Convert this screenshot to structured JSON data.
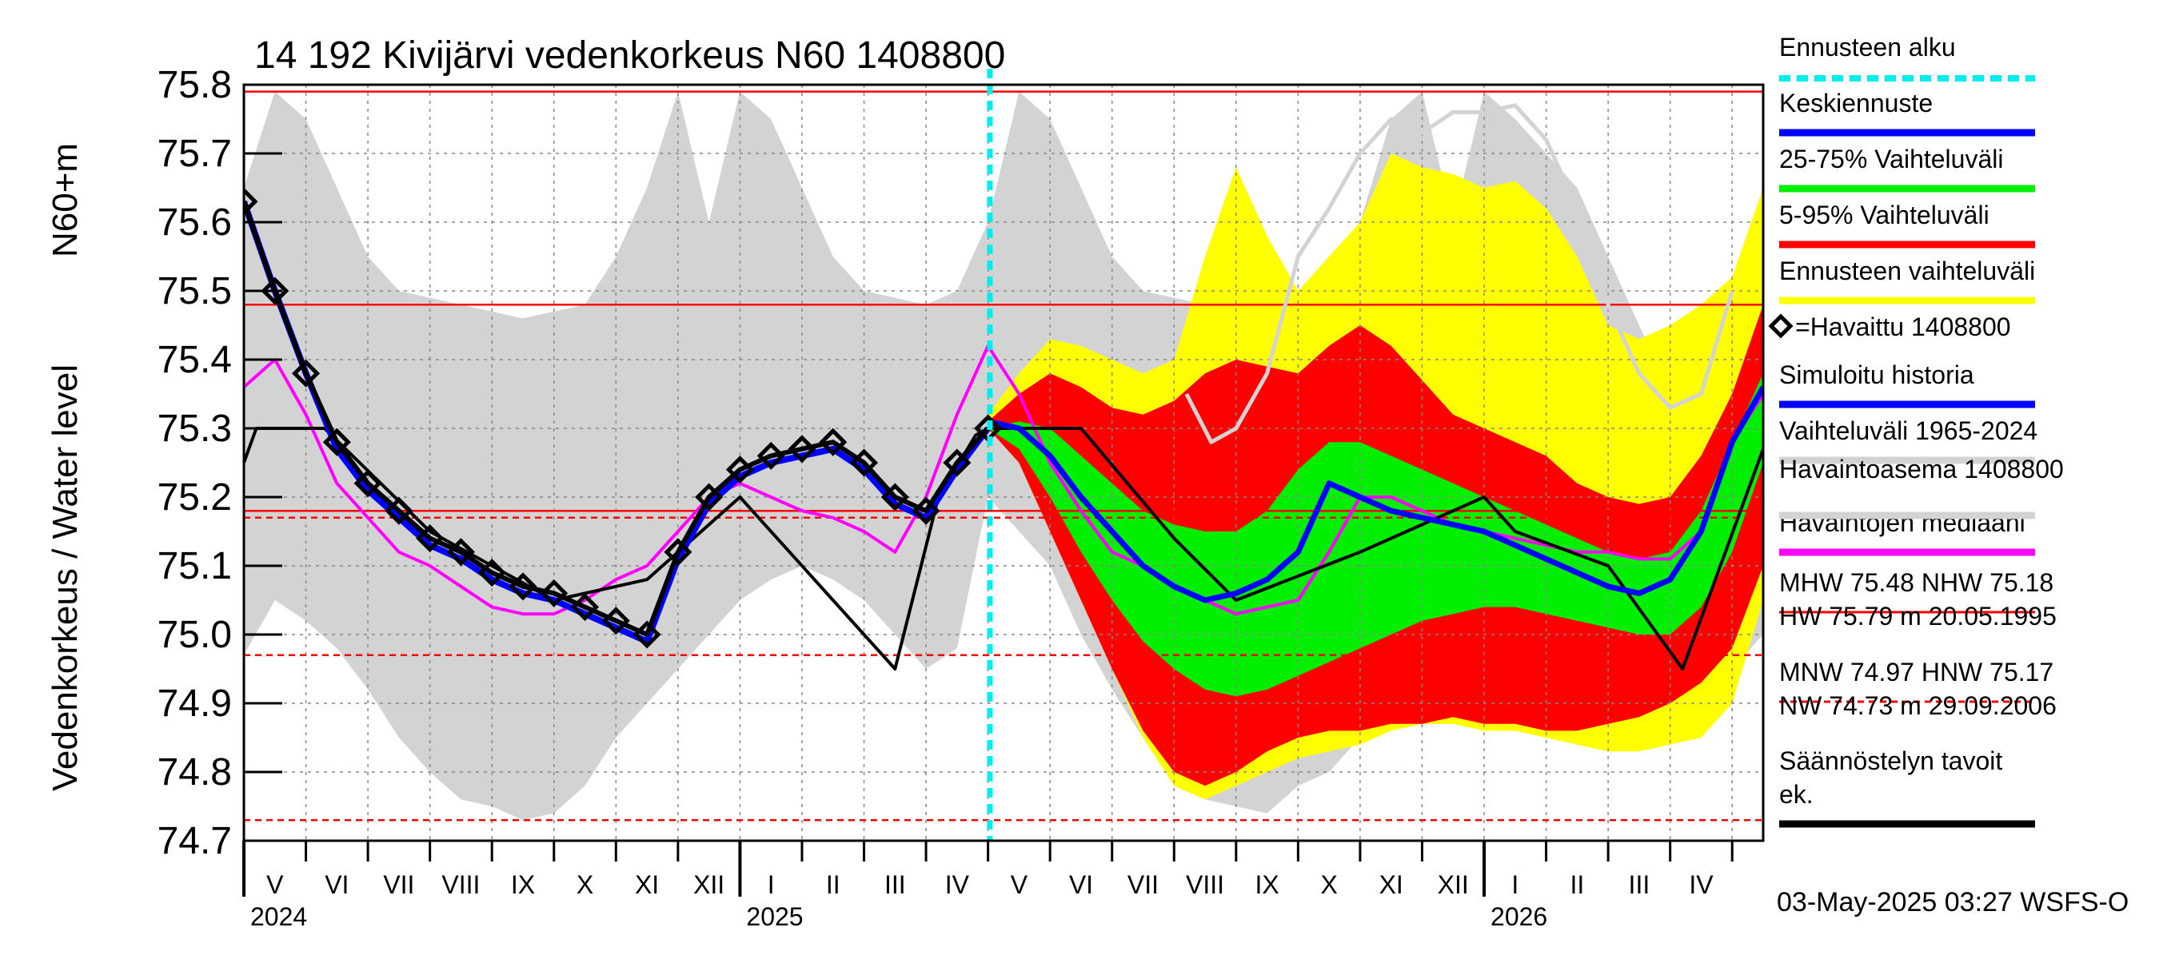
{
  "chart_data": {
    "type": "line",
    "title": "14 192 Kivijärvi vedenkorkeus N60 1408800",
    "ylabel_main": "Vedenkorkeus / Water level",
    "ylabel_unit": "N60+m",
    "ylim": [
      74.7,
      75.8
    ],
    "y_ticks": [
      "75.8",
      "75.7",
      "75.6",
      "75.5",
      "75.4",
      "75.3",
      "75.2",
      "75.1",
      "75.0",
      "74.9",
      "74.8",
      "74.7"
    ],
    "x_range_months": [
      0,
      24.5
    ],
    "x_month_labels": [
      "V",
      "VI",
      "VII",
      "VIII",
      "IX",
      "X",
      "XI",
      "XII",
      "I",
      "II",
      "III",
      "IV",
      "V",
      "VI",
      "VII",
      "VIII",
      "IX",
      "X",
      "XI",
      "XII",
      "I",
      "II",
      "III",
      "IV"
    ],
    "x_year_labels": [
      {
        "label": "2024",
        "month": 0
      },
      {
        "label": "2025",
        "month": 8
      },
      {
        "label": "2026",
        "month": 20
      }
    ],
    "forecast_start_month": 12.03,
    "reference_lines": [
      {
        "name": "HW",
        "value": 75.79,
        "style": "solid"
      },
      {
        "name": "MHW",
        "value": 75.48,
        "style": "solid"
      },
      {
        "name": "NHW",
        "value": 75.18,
        "style": "solid"
      },
      {
        "name": "HNW",
        "value": 75.17,
        "style": "dashed"
      },
      {
        "name": "MNW",
        "value": 74.97,
        "style": "dashed"
      },
      {
        "name": "NW",
        "value": 74.73,
        "style": "dashed"
      }
    ],
    "series": [
      {
        "name": "Vaihteluväli 1965-2024 (upper)",
        "color": "#d3d3d3",
        "x": [
          0,
          0.5,
          1,
          1.5,
          2,
          2.5,
          3,
          3.5,
          4,
          4.5,
          5,
          5.5,
          6,
          6.5,
          7,
          7.5,
          8,
          8.5,
          9,
          9.5,
          10,
          10.5,
          11,
          11.5,
          12,
          12.5,
          13,
          13.5,
          14,
          14.5,
          15,
          15.5,
          16,
          16.5,
          17,
          17.5,
          18,
          18.5,
          19,
          19.5,
          20,
          20.5,
          21,
          21.5,
          22,
          22.5,
          23,
          23.5,
          24,
          24.5
        ],
        "y": [
          75.65,
          75.79,
          75.75,
          75.65,
          75.55,
          75.5,
          75.49,
          75.48,
          75.47,
          75.46,
          75.47,
          75.48,
          75.55,
          75.65,
          75.79,
          75.6,
          75.79,
          75.75,
          75.65,
          75.55,
          75.5,
          75.49,
          75.48,
          75.5,
          75.6,
          75.79,
          75.75,
          75.65,
          75.55,
          75.5,
          75.49,
          75.48,
          75.47,
          75.46,
          75.47,
          75.5,
          75.6,
          75.75,
          75.79,
          75.6,
          75.79,
          75.75,
          75.7,
          75.65,
          75.55,
          75.45,
          75.35,
          75.3,
          75.5,
          75.65
        ]
      },
      {
        "name": "Vaihteluväli 1965-2024 (lower)",
        "color": "#d3d3d3",
        "x": [
          0,
          0.5,
          1,
          1.5,
          2,
          2.5,
          3,
          3.5,
          4,
          4.5,
          5,
          5.5,
          6,
          6.5,
          7,
          7.5,
          8,
          8.5,
          9,
          9.5,
          10,
          10.5,
          11,
          11.5,
          12,
          12.5,
          13,
          13.5,
          14,
          14.5,
          15,
          15.5,
          16,
          16.5,
          17,
          17.5,
          18,
          18.5,
          19,
          19.5,
          20,
          20.5,
          21,
          21.5,
          22,
          22.5,
          23,
          23.5,
          24,
          24.5
        ],
        "y": [
          74.97,
          75.05,
          75.02,
          74.98,
          74.92,
          74.85,
          74.8,
          74.76,
          74.75,
          74.73,
          74.74,
          74.78,
          74.85,
          74.9,
          74.95,
          75.0,
          75.05,
          75.08,
          75.1,
          75.08,
          75.05,
          75.0,
          74.95,
          74.98,
          75.2,
          75.15,
          75.1,
          75.0,
          74.92,
          74.85,
          74.8,
          74.76,
          74.75,
          74.74,
          74.78,
          74.8,
          74.85,
          74.86,
          74.87,
          74.87,
          74.87,
          74.87,
          74.86,
          74.86,
          74.86,
          74.87,
          74.88,
          74.9,
          74.95,
          75.0
        ]
      },
      {
        "name": "Ennusteen vaihteluväli (upper)",
        "color": "#ffff00",
        "x": [
          12,
          12.5,
          13,
          13.5,
          14,
          14.5,
          15,
          15.5,
          16,
          16.5,
          17,
          17.5,
          18,
          18.5,
          19,
          19.5,
          20,
          20.5,
          21,
          21.5,
          22,
          22.5,
          23,
          23.5,
          24,
          24.5
        ],
        "y": [
          75.32,
          75.38,
          75.43,
          75.42,
          75.4,
          75.38,
          75.4,
          75.55,
          75.68,
          75.58,
          75.5,
          75.55,
          75.6,
          75.7,
          75.68,
          75.67,
          75.65,
          75.66,
          75.62,
          75.55,
          75.45,
          75.43,
          75.45,
          75.48,
          75.52,
          75.65
        ]
      },
      {
        "name": "Ennusteen vaihteluväli (lower)",
        "color": "#ffff00",
        "x": [
          12,
          12.5,
          13,
          13.5,
          14,
          14.5,
          15,
          15.5,
          16,
          16.5,
          17,
          17.5,
          18,
          18.5,
          19,
          19.5,
          20,
          20.5,
          21,
          21.5,
          22,
          22.5,
          23,
          23.5,
          24,
          24.5
        ],
        "y": [
          75.3,
          75.25,
          75.15,
          75.05,
          74.95,
          74.85,
          74.78,
          74.76,
          74.78,
          74.8,
          74.82,
          74.83,
          74.84,
          74.86,
          74.87,
          74.87,
          74.86,
          74.86,
          74.85,
          74.84,
          74.83,
          74.83,
          74.84,
          74.85,
          74.9,
          75.05
        ]
      },
      {
        "name": "5-95% Vaihteluväli (upper)",
        "color": "#ff0000",
        "x": [
          12,
          12.5,
          13,
          13.5,
          14,
          14.5,
          15,
          15.5,
          16,
          16.5,
          17,
          17.5,
          18,
          18.5,
          19,
          19.5,
          20,
          20.5,
          21,
          21.5,
          22,
          22.5,
          23,
          23.5,
          24,
          24.5
        ],
        "y": [
          75.31,
          75.35,
          75.38,
          75.36,
          75.33,
          75.32,
          75.34,
          75.38,
          75.4,
          75.39,
          75.38,
          75.42,
          75.45,
          75.42,
          75.37,
          75.32,
          75.3,
          75.28,
          75.26,
          75.22,
          75.2,
          75.19,
          75.2,
          75.26,
          75.35,
          75.48
        ]
      },
      {
        "name": "5-95% Vaihteluväli (lower)",
        "color": "#ff0000",
        "x": [
          12,
          12.5,
          13,
          13.5,
          14,
          14.5,
          15,
          15.5,
          16,
          16.5,
          17,
          17.5,
          18,
          18.5,
          19,
          19.5,
          20,
          20.5,
          21,
          21.5,
          22,
          22.5,
          23,
          23.5,
          24,
          24.5
        ],
        "y": [
          75.3,
          75.25,
          75.15,
          75.05,
          74.95,
          74.86,
          74.8,
          74.78,
          74.8,
          74.83,
          74.85,
          74.86,
          74.86,
          74.87,
          74.87,
          74.88,
          74.87,
          74.87,
          74.86,
          74.86,
          74.87,
          74.88,
          74.9,
          74.93,
          74.98,
          75.1
        ]
      },
      {
        "name": "25-75% Vaihteluväli (upper)",
        "color": "#00ee00",
        "x": [
          12,
          12.5,
          13,
          13.5,
          14,
          14.5,
          15,
          15.5,
          16,
          16.5,
          17,
          17.5,
          18,
          18.5,
          19,
          19.5,
          20,
          20.5,
          21,
          21.5,
          22,
          22.5,
          23,
          23.5,
          24,
          24.5
        ],
        "y": [
          75.3,
          75.31,
          75.3,
          75.26,
          75.22,
          75.18,
          75.16,
          75.15,
          75.15,
          75.18,
          75.24,
          75.28,
          75.28,
          75.26,
          75.24,
          75.22,
          75.2,
          75.18,
          75.16,
          75.14,
          75.12,
          75.11,
          75.12,
          75.18,
          75.28,
          75.38
        ]
      },
      {
        "name": "25-75% Vaihteluväli (lower)",
        "color": "#00ee00",
        "x": [
          12,
          12.5,
          13,
          13.5,
          14,
          14.5,
          15,
          15.5,
          16,
          16.5,
          17,
          17.5,
          18,
          18.5,
          19,
          19.5,
          20,
          20.5,
          21,
          21.5,
          22,
          22.5,
          23,
          23.5,
          24,
          24.5
        ],
        "y": [
          75.3,
          75.27,
          75.2,
          75.12,
          75.05,
          74.99,
          74.95,
          74.92,
          74.91,
          74.92,
          74.94,
          74.96,
          74.98,
          75.0,
          75.02,
          75.03,
          75.04,
          75.04,
          75.03,
          75.02,
          75.01,
          75.0,
          75.0,
          75.04,
          75.12,
          75.25
        ]
      },
      {
        "name": "Havaittu 1408800",
        "color": "#000000",
        "x": [
          0,
          0.5,
          1,
          1.5,
          2,
          2.5,
          3,
          3.5,
          4,
          4.5,
          5,
          5.5,
          6,
          6.5,
          7,
          7.5,
          8,
          8.5,
          9,
          9.5,
          10,
          10.5,
          11,
          11.5,
          12
        ],
        "y": [
          75.63,
          75.5,
          75.38,
          75.28,
          75.22,
          75.18,
          75.14,
          75.12,
          75.09,
          75.07,
          75.06,
          75.04,
          75.02,
          75.0,
          75.12,
          75.2,
          75.24,
          75.26,
          75.27,
          75.28,
          75.25,
          75.2,
          75.18,
          75.25,
          75.3
        ]
      },
      {
        "name": "Simuloitu historia",
        "color": "#0000ff",
        "x": [
          0,
          0.5,
          1,
          1.5,
          2,
          2.5,
          3,
          3.5,
          4,
          4.5,
          5,
          5.5,
          6,
          6.5,
          7,
          7.5,
          8,
          8.5,
          9,
          9.5,
          10,
          10.5,
          11,
          11.5,
          12
        ],
        "y": [
          75.63,
          75.5,
          75.38,
          75.27,
          75.21,
          75.17,
          75.13,
          75.11,
          75.08,
          75.06,
          75.05,
          75.03,
          75.01,
          74.99,
          75.11,
          75.19,
          75.23,
          75.25,
          75.26,
          75.27,
          75.24,
          75.19,
          75.17,
          75.24,
          75.3
        ]
      },
      {
        "name": "Keskiennuste",
        "color": "#0000ff",
        "x": [
          12,
          12.5,
          13,
          13.5,
          14,
          14.5,
          15,
          15.5,
          16,
          16.5,
          17,
          17.5,
          18,
          18.5,
          19,
          19.5,
          20,
          20.5,
          21,
          21.5,
          22,
          22.5,
          23,
          23.5,
          24,
          24.5
        ],
        "y": [
          75.31,
          75.3,
          75.26,
          75.2,
          75.15,
          75.1,
          75.07,
          75.05,
          75.06,
          75.08,
          75.12,
          75.22,
          75.2,
          75.18,
          75.17,
          75.16,
          75.15,
          75.13,
          75.11,
          75.09,
          75.07,
          75.06,
          75.08,
          75.15,
          75.28,
          75.36
        ]
      },
      {
        "name": "Havaintojen mediaani",
        "color": "#ff00ff",
        "x": [
          0,
          0.5,
          1,
          1.5,
          2,
          2.5,
          3,
          3.5,
          4,
          4.5,
          5,
          5.5,
          6,
          6.5,
          7,
          7.5,
          8,
          8.5,
          9,
          9.5,
          10,
          10.5,
          11,
          11.5,
          12,
          12.5,
          13,
          13.5,
          14,
          14.5,
          15,
          15.5,
          16,
          16.5,
          17,
          17.5,
          18,
          18.5,
          19,
          19.5,
          20,
          20.5,
          21,
          21.5,
          22,
          22.5,
          23,
          23.5,
          24,
          24.5
        ],
        "y": [
          75.36,
          75.4,
          75.32,
          75.22,
          75.17,
          75.12,
          75.1,
          75.07,
          75.04,
          75.03,
          75.03,
          75.05,
          75.08,
          75.1,
          75.15,
          75.2,
          75.22,
          75.2,
          75.18,
          75.17,
          75.15,
          75.12,
          75.2,
          75.32,
          75.42,
          75.35,
          75.25,
          75.18,
          75.12,
          75.1,
          75.07,
          75.05,
          75.03,
          75.04,
          75.05,
          75.12,
          75.2,
          75.2,
          75.18,
          75.16,
          75.15,
          75.14,
          75.13,
          75.12,
          75.12,
          75.11,
          75.11,
          75.15,
          75.28,
          75.35
        ]
      },
      {
        "name": "Säännöstelyn tavoitek.",
        "color": "#000000",
        "x": [
          0,
          0.2,
          1.3,
          3,
          5,
          6.5,
          8,
          10.5,
          11.2,
          11.8,
          12,
          13.5,
          15,
          16,
          18,
          20,
          20.5,
          22,
          23.2,
          24.5
        ],
        "y": [
          75.25,
          75.3,
          75.3,
          75.15,
          75.05,
          75.08,
          75.2,
          74.95,
          75.2,
          75.29,
          75.3,
          75.3,
          75.14,
          75.05,
          75.12,
          75.2,
          75.15,
          75.1,
          74.95,
          75.27
        ]
      },
      {
        "name": "Havaintoasema 1408800 (vaalea)",
        "color": "#d3d3d3",
        "x": [
          15.2,
          15.6,
          16,
          16.5,
          17,
          17.5,
          18,
          18.5,
          19,
          19.5,
          20,
          20.5,
          21,
          21.5,
          22,
          22.5,
          23,
          23.5,
          24
        ],
        "y": [
          75.35,
          75.28,
          75.3,
          75.38,
          75.55,
          75.62,
          75.7,
          75.75,
          75.73,
          75.76,
          75.76,
          75.77,
          75.72,
          75.62,
          75.48,
          75.38,
          75.33,
          75.35,
          75.5
        ]
      }
    ],
    "legend": [
      {
        "label": "Ennusteen alku",
        "color": "#00eeee",
        "style": "dashed"
      },
      {
        "label": "Keskiennuste",
        "color": "#0000ff",
        "style": "solid"
      },
      {
        "label": "25-75% Vaihteluväli",
        "color": "#00ee00",
        "style": "solid"
      },
      {
        "label": "5-95% Vaihteluväli",
        "color": "#ff0000",
        "style": "solid"
      },
      {
        "label": "Ennusteen vaihteluväli",
        "color": "#ffff00",
        "style": "solid"
      },
      {
        "label": "=Havaittu 1408800",
        "color": "#000000",
        "style": "marker"
      },
      {
        "label": "Simuloitu historia",
        "color": "#0000ff",
        "style": "solid"
      },
      {
        "label": "Vaihteluväli 1965-2024",
        "color": "#d3d3d3",
        "style": "solid"
      },
      {
        "label": " Havaintoasema 1408800",
        "color": "#d3d3d3",
        "style": "none"
      },
      {
        "label": "Havaintojen mediaani",
        "color": "#ff00ff",
        "style": "solid"
      },
      {
        "label": "MHW  75.48 NHW  75.18",
        "color": "#ff0000",
        "style": "solid"
      },
      {
        "label": "HW  75.79 m 20.05.1995",
        "color": "#ff0000",
        "style": "none"
      },
      {
        "label": "MNW  74.97 HNW  75.17",
        "color": "#ff0000",
        "style": "dashed"
      },
      {
        "label": "NW  74.73 m 29.09.2006",
        "color": "#ff0000",
        "style": "none"
      },
      {
        "label": "Säännöstelyn tavoit",
        "color": "#000000",
        "style": "none"
      },
      {
        "label": "ek.",
        "color": "#000000",
        "style": "solid"
      }
    ],
    "footer": "03-May-2025 03:27 WSFS-O"
  }
}
